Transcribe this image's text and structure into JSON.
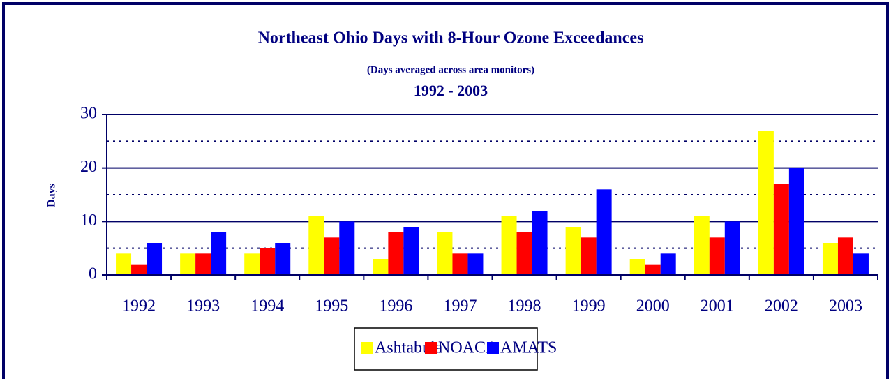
{
  "chart_data": {
    "type": "bar",
    "title": "Northeast Ohio Days with 8-Hour Ozone Exceedances",
    "subtitle": "(Days averaged across area monitors)",
    "period": "1992 - 2003",
    "y_label": "Days",
    "categories": [
      "1992",
      "1993",
      "1994",
      "1995",
      "1996",
      "1997",
      "1998",
      "1999",
      "2000",
      "2001",
      "2002",
      "2003"
    ],
    "series": [
      {
        "name": "Ashtabula",
        "color": "#ffff00",
        "values": [
          4,
          4,
          4,
          11,
          3,
          8,
          11,
          9,
          3,
          11,
          27,
          6
        ]
      },
      {
        "name": "NOACA",
        "color": "#ff0000",
        "values": [
          2,
          4,
          5,
          7,
          8,
          4,
          8,
          7,
          2,
          7,
          17,
          7
        ]
      },
      {
        "name": "AMATS",
        "color": "#0000ff",
        "values": [
          6,
          8,
          6,
          10,
          9,
          4,
          12,
          16,
          4,
          10,
          20,
          4
        ]
      }
    ],
    "ylim": [
      0,
      30
    ],
    "yticks": [
      0,
      10,
      20,
      30
    ],
    "minor_yticks": [
      5,
      15,
      25
    ],
    "grid": true,
    "legend": "bottom"
  }
}
